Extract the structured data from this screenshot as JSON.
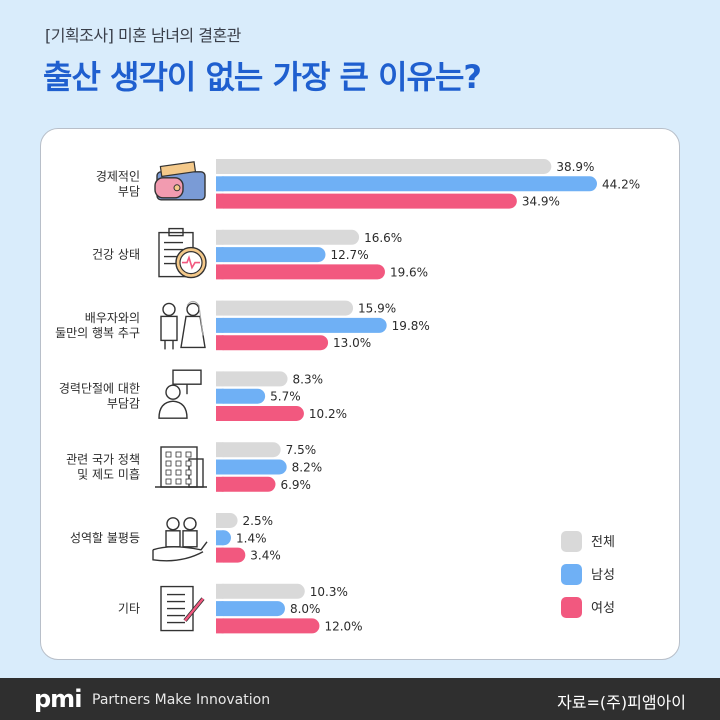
{
  "header": {
    "tag": "[기획조사] 미혼 남녀의 결혼관",
    "title": "출산 생각이 없는 가장 큰 이유는?"
  },
  "footer": {
    "brand": "pmi",
    "brand_sub": "Partners Make Innovation",
    "source": "자료=(주)피앰아이"
  },
  "chart_data": {
    "type": "bar",
    "orientation": "horizontal",
    "title": "출산 생각이 없는 가장 큰 이유는?",
    "categories": [
      [
        "경제적인",
        "부담"
      ],
      [
        "건강 상태"
      ],
      [
        "배우자와의",
        "둘만의 행복 추구"
      ],
      [
        "경력단절에 대한",
        "부담감"
      ],
      [
        "관련 국가 정책",
        "및 제도 미흡"
      ],
      [
        "성역할 불평등"
      ],
      [
        "기타"
      ]
    ],
    "series": [
      {
        "name": "전체",
        "color": "#d9d9d9",
        "values": [
          38.9,
          16.6,
          15.9,
          8.3,
          7.5,
          2.5,
          10.3
        ]
      },
      {
        "name": "남성",
        "color": "#6fb0f5",
        "values": [
          44.2,
          12.7,
          19.8,
          5.7,
          8.2,
          1.4,
          8.0
        ]
      },
      {
        "name": "여성",
        "color": "#f2587f",
        "values": [
          34.9,
          19.6,
          13.0,
          10.2,
          6.9,
          3.4,
          12.0
        ]
      }
    ],
    "unit": "%",
    "legend": "bottom-right",
    "icons": [
      "wallet-icon",
      "health-clipboard-icon",
      "couple-icon",
      "job-sign-icon",
      "building-icon",
      "elderly-couple-hand-icon",
      "document-pen-icon"
    ]
  }
}
